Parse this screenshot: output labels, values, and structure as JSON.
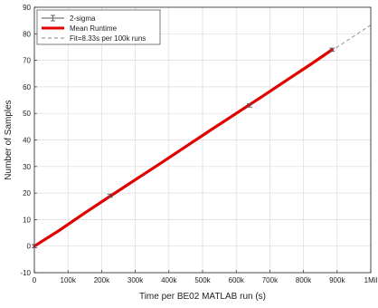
{
  "chart_data": {
    "type": "line",
    "title": "",
    "xlabel": "Time per BE02 MATLAB run (s)",
    "ylabel": "Number of Samples",
    "xlim": [
      0,
      1000000
    ],
    "ylim": [
      -10,
      90
    ],
    "grid": true,
    "x_ticks": [
      0,
      100000,
      200000,
      300000,
      400000,
      500000,
      600000,
      700000,
      800000,
      900000,
      1000000
    ],
    "x_tick_labels": [
      "0",
      "100k",
      "200k",
      "300k",
      "400k",
      "500k",
      "600k",
      "700k",
      "800k",
      "900k",
      "1Mil"
    ],
    "y_ticks": [
      -10,
      0,
      10,
      20,
      30,
      40,
      50,
      60,
      70,
      80,
      90
    ],
    "y_tick_labels": [
      "-10",
      "0",
      "10",
      "20",
      "30",
      "40",
      "50",
      "60",
      "70",
      "80",
      "90"
    ],
    "legend_position": "top-left",
    "series": [
      {
        "name": "2-sigma",
        "color": "#555555",
        "x": [
          0,
          225000,
          640000,
          885000
        ],
        "y": [
          0,
          19,
          53,
          74
        ],
        "err": [
          0.6,
          0.6,
          0.6,
          0.6
        ]
      },
      {
        "name": "Mean Runtime",
        "color": "#e00000",
        "x": [
          0,
          75000,
          150000,
          225000,
          300000,
          375000,
          450000,
          525000,
          600000,
          675000,
          750000,
          825000,
          885000
        ],
        "y": [
          0,
          6,
          12.5,
          18.8,
          25,
          31.2,
          37.5,
          43.8,
          50,
          56.2,
          62.5,
          68.8,
          74
        ]
      },
      {
        "name": "Fit=8.33s per 100k runs",
        "color": "#888888",
        "x": [
          0,
          1000000
        ],
        "y": [
          0,
          83.3
        ]
      }
    ]
  }
}
